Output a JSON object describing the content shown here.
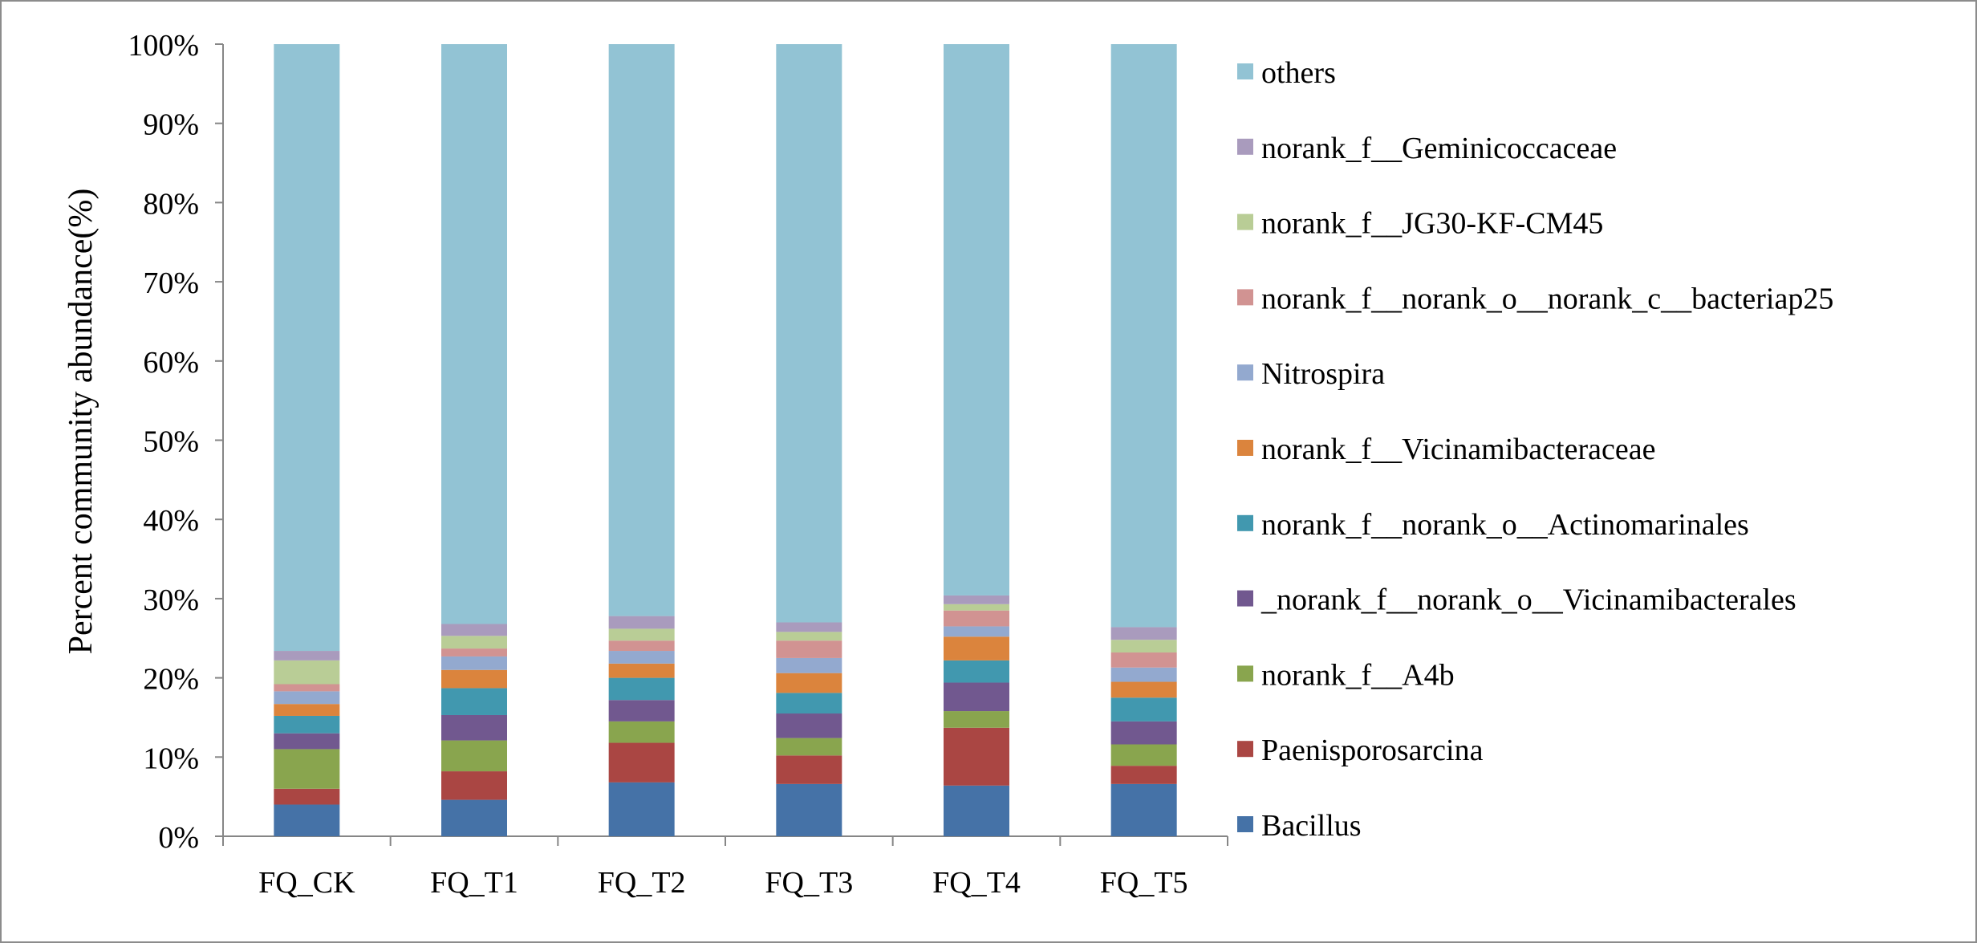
{
  "chart_data": {
    "type": "bar",
    "stacked": true,
    "title": "",
    "xlabel": "",
    "ylabel": "Percent community abundance(%)",
    "ylim": [
      0,
      100
    ],
    "yticks": [
      "0%",
      "10%",
      "20%",
      "30%",
      "40%",
      "50%",
      "60%",
      "70%",
      "80%",
      "90%",
      "100%"
    ],
    "grid": false,
    "legend_position": "right",
    "categories": [
      "FQ_CK",
      "FQ_T1",
      "FQ_T2",
      "FQ_T3",
      "FQ_T4",
      "FQ_T5"
    ],
    "series": [
      {
        "name": "Bacillus",
        "color": "#4572a7",
        "values": [
          4.0,
          4.6,
          6.8,
          6.6,
          6.4,
          6.6
        ]
      },
      {
        "name": "Paenisporosarcina",
        "color": "#aa4643",
        "values": [
          2.0,
          3.6,
          5.0,
          3.6,
          7.3,
          2.3
        ]
      },
      {
        "name": "norank_f__A4b",
        "color": "#89a54e",
        "values": [
          5.0,
          3.9,
          2.7,
          2.2,
          2.1,
          2.7
        ]
      },
      {
        "name": "_norank_f__norank_o__Vicinamibacterales",
        "color": "#71588f",
        "values": [
          2.0,
          3.2,
          2.7,
          3.1,
          3.6,
          2.9
        ]
      },
      {
        "name": "norank_f__norank_o__Actinomarinales",
        "color": "#4198af",
        "values": [
          2.2,
          3.4,
          2.8,
          2.6,
          2.8,
          3.0
        ]
      },
      {
        "name": "norank_f__Vicinamibacteraceae",
        "color": "#db843d",
        "values": [
          1.5,
          2.3,
          1.8,
          2.5,
          3.0,
          2.0
        ]
      },
      {
        "name": "Nitrospira",
        "color": "#93a9cf",
        "values": [
          1.6,
          1.7,
          1.6,
          1.9,
          1.3,
          1.8
        ]
      },
      {
        "name": "norank_f__norank_o__norank_c__bacteriap25",
        "color": "#d19392",
        "values": [
          0.9,
          1.0,
          1.3,
          2.2,
          2.0,
          1.9
        ]
      },
      {
        "name": "norank_f__JG30-KF-CM45",
        "color": "#b9cd96",
        "values": [
          3.0,
          1.6,
          1.5,
          1.1,
          0.8,
          1.6
        ]
      },
      {
        "name": "norank_f__Geminicoccaceae",
        "color": "#a99bbd",
        "values": [
          1.2,
          1.5,
          1.6,
          1.2,
          1.1,
          1.6
        ]
      },
      {
        "name": "others",
        "color": "#92c3d4",
        "values": [
          76.6,
          73.2,
          72.2,
          73.0,
          69.6,
          73.6
        ]
      }
    ]
  }
}
